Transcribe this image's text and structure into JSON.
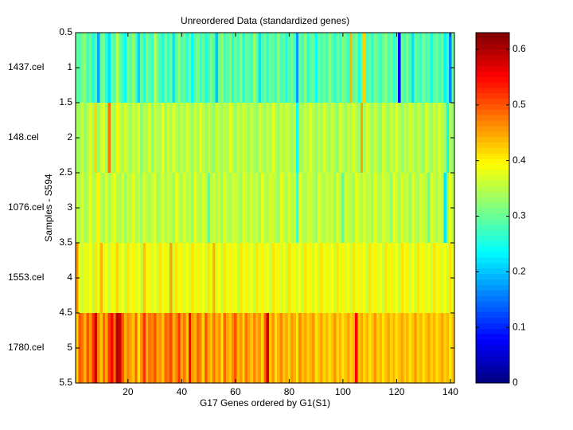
{
  "chart_data": {
    "type": "heatmap",
    "title": "Unreordered Data (standardized genes)",
    "x_label": "G17 Genes ordered by G1(S1)",
    "y_label": "Samples - S594",
    "row_labels": [
      "1437.cel",
      "148.cel",
      "1076.cel",
      "1553.cel",
      "1780.cel"
    ],
    "xlim": [
      0.5,
      141.5
    ],
    "xticks": [
      20,
      40,
      60,
      80,
      100,
      120,
      140
    ],
    "ylim": [
      0.5,
      5.5
    ],
    "yticks": [
      0.5,
      1,
      1.5,
      2,
      2.5,
      3,
      3.5,
      4,
      4.5,
      5,
      5.5
    ],
    "clim": [
      0,
      0.63
    ],
    "cticks": [
      0,
      0.1,
      0.2,
      0.3,
      0.4,
      0.5,
      0.6
    ],
    "colormap": "jet",
    "values": [
      [
        0.3,
        0.28,
        0.31,
        0.33,
        0.27,
        0.3,
        0.25,
        0.29,
        0.18,
        0.3,
        0.32,
        0.26,
        0.22,
        0.3,
        0.28,
        0.35,
        0.3,
        0.27,
        0.24,
        0.31,
        0.29,
        0.33,
        0.28,
        0.21,
        0.3,
        0.26,
        0.32,
        0.29,
        0.27,
        0.36,
        0.3,
        0.28,
        0.25,
        0.31,
        0.27,
        0.3,
        0.22,
        0.29,
        0.33,
        0.28,
        0.3,
        0.26,
        0.31,
        0.24,
        0.29,
        0.32,
        0.27,
        0.3,
        0.25,
        0.28,
        0.31,
        0.29,
        0.2,
        0.3,
        0.34,
        0.27,
        0.29,
        0.31,
        0.26,
        0.3,
        0.28,
        0.32,
        0.25,
        0.3,
        0.29,
        0.27,
        0.33,
        0.3,
        0.22,
        0.28,
        0.31,
        0.26,
        0.3,
        0.29,
        0.27,
        0.32,
        0.28,
        0.3,
        0.25,
        0.29,
        0.31,
        0.27,
        0.17,
        0.3,
        0.28,
        0.32,
        0.26,
        0.29,
        0.3,
        0.24,
        0.31,
        0.28,
        0.3,
        0.27,
        0.33,
        0.29,
        0.26,
        0.3,
        0.28,
        0.32,
        0.3,
        0.27,
        0.44,
        0.29,
        0.31,
        0.25,
        0.3,
        0.42,
        0.28,
        0.3,
        0.26,
        0.31,
        0.29,
        0.27,
        0.3,
        0.33,
        0.28,
        0.3,
        0.26,
        0.29,
        0.08,
        0.3,
        0.27,
        0.31,
        0.28,
        0.22,
        0.3,
        0.29,
        0.26,
        0.32,
        0.28,
        0.3,
        0.24,
        0.29,
        0.31,
        0.27,
        0.3,
        0.23,
        0.28,
        0.16,
        0.3
      ],
      [
        0.34,
        0.33,
        0.36,
        0.32,
        0.35,
        0.37,
        0.34,
        0.42,
        0.33,
        0.36,
        0.38,
        0.34,
        0.48,
        0.35,
        0.33,
        0.4,
        0.36,
        0.34,
        0.37,
        0.35,
        0.33,
        0.36,
        0.34,
        0.38,
        0.32,
        0.35,
        0.34,
        0.37,
        0.33,
        0.36,
        0.35,
        0.34,
        0.39,
        0.33,
        0.36,
        0.34,
        0.38,
        0.35,
        0.33,
        0.36,
        0.34,
        0.37,
        0.35,
        0.33,
        0.36,
        0.34,
        0.38,
        0.35,
        0.33,
        0.36,
        0.34,
        0.32,
        0.37,
        0.35,
        0.33,
        0.36,
        0.34,
        0.38,
        0.35,
        0.33,
        0.36,
        0.34,
        0.37,
        0.35,
        0.33,
        0.36,
        0.34,
        0.32,
        0.37,
        0.35,
        0.33,
        0.36,
        0.34,
        0.38,
        0.35,
        0.33,
        0.36,
        0.34,
        0.37,
        0.35,
        0.33,
        0.36,
        0.24,
        0.35,
        0.33,
        0.36,
        0.34,
        0.38,
        0.35,
        0.33,
        0.36,
        0.34,
        0.37,
        0.35,
        0.33,
        0.36,
        0.34,
        0.32,
        0.37,
        0.35,
        0.33,
        0.36,
        0.34,
        0.38,
        0.35,
        0.33,
        0.45,
        0.34,
        0.37,
        0.35,
        0.33,
        0.36,
        0.34,
        0.32,
        0.37,
        0.35,
        0.33,
        0.36,
        0.34,
        0.38,
        0.35,
        0.33,
        0.36,
        0.34,
        0.37,
        0.35,
        0.33,
        0.36,
        0.34,
        0.32,
        0.37,
        0.35,
        0.33,
        0.36,
        0.34,
        0.38,
        0.35,
        0.33,
        0.24,
        0.34,
        0.33
      ],
      [
        0.36,
        0.34,
        0.37,
        0.33,
        0.35,
        0.38,
        0.34,
        0.36,
        0.4,
        0.35,
        0.33,
        0.37,
        0.34,
        0.36,
        0.39,
        0.35,
        0.34,
        0.37,
        0.33,
        0.36,
        0.35,
        0.38,
        0.34,
        0.36,
        0.33,
        0.37,
        0.35,
        0.34,
        0.36,
        0.38,
        0.33,
        0.35,
        0.37,
        0.34,
        0.36,
        0.35,
        0.33,
        0.38,
        0.36,
        0.34,
        0.37,
        0.35,
        0.36,
        0.33,
        0.38,
        0.35,
        0.34,
        0.37,
        0.36,
        0.29,
        0.35,
        0.37,
        0.34,
        0.36,
        0.33,
        0.38,
        0.35,
        0.34,
        0.37,
        0.36,
        0.35,
        0.33,
        0.38,
        0.36,
        0.34,
        0.37,
        0.35,
        0.36,
        0.33,
        0.38,
        0.35,
        0.34,
        0.37,
        0.36,
        0.35,
        0.33,
        0.38,
        0.36,
        0.34,
        0.37,
        0.35,
        0.36,
        0.28,
        0.38,
        0.35,
        0.34,
        0.37,
        0.36,
        0.35,
        0.33,
        0.38,
        0.36,
        0.34,
        0.37,
        0.35,
        0.36,
        0.33,
        0.38,
        0.35,
        0.29,
        0.37,
        0.36,
        0.35,
        0.33,
        0.38,
        0.36,
        0.34,
        0.37,
        0.35,
        0.36,
        0.33,
        0.38,
        0.35,
        0.34,
        0.37,
        0.36,
        0.35,
        0.33,
        0.38,
        0.36,
        0.34,
        0.37,
        0.35,
        0.36,
        0.33,
        0.38,
        0.35,
        0.34,
        0.37,
        0.36,
        0.35,
        0.3,
        0.38,
        0.36,
        0.34,
        0.37,
        0.35,
        0.22,
        0.33,
        0.38,
        0.35
      ],
      [
        0.46,
        0.38,
        0.36,
        0.4,
        0.37,
        0.39,
        0.35,
        0.41,
        0.38,
        0.44,
        0.37,
        0.39,
        0.36,
        0.4,
        0.38,
        0.42,
        0.37,
        0.39,
        0.36,
        0.41,
        0.38,
        0.4,
        0.37,
        0.39,
        0.36,
        0.43,
        0.38,
        0.4,
        0.37,
        0.39,
        0.36,
        0.41,
        0.38,
        0.4,
        0.37,
        0.45,
        0.36,
        0.41,
        0.38,
        0.4,
        0.37,
        0.39,
        0.36,
        0.41,
        0.38,
        0.4,
        0.37,
        0.39,
        0.36,
        0.41,
        0.38,
        0.44,
        0.37,
        0.39,
        0.36,
        0.41,
        0.38,
        0.4,
        0.37,
        0.39,
        0.36,
        0.41,
        0.38,
        0.4,
        0.37,
        0.39,
        0.36,
        0.41,
        0.38,
        0.4,
        0.37,
        0.39,
        0.36,
        0.41,
        0.38,
        0.4,
        0.37,
        0.39,
        0.36,
        0.41,
        0.38,
        0.4,
        0.37,
        0.39,
        0.36,
        0.41,
        0.38,
        0.4,
        0.37,
        0.39,
        0.36,
        0.41,
        0.38,
        0.4,
        0.37,
        0.39,
        0.36,
        0.41,
        0.38,
        0.4,
        0.37,
        0.39,
        0.36,
        0.41,
        0.38,
        0.4,
        0.37,
        0.39,
        0.36,
        0.41,
        0.38,
        0.4,
        0.37,
        0.39,
        0.36,
        0.41,
        0.38,
        0.4,
        0.37,
        0.39,
        0.36,
        0.41,
        0.38,
        0.4,
        0.37,
        0.39,
        0.36,
        0.41,
        0.38,
        0.4,
        0.37,
        0.39,
        0.36,
        0.41,
        0.38,
        0.4,
        0.37,
        0.39,
        0.36,
        0.41,
        0.38
      ],
      [
        0.42,
        0.5,
        0.48,
        0.44,
        0.5,
        0.46,
        0.52,
        0.58,
        0.47,
        0.43,
        0.49,
        0.45,
        0.52,
        0.55,
        0.48,
        0.6,
        0.58,
        0.5,
        0.44,
        0.47,
        0.45,
        0.43,
        0.49,
        0.41,
        0.46,
        0.52,
        0.44,
        0.48,
        0.47,
        0.5,
        0.45,
        0.46,
        0.43,
        0.49,
        0.48,
        0.51,
        0.44,
        0.47,
        0.52,
        0.45,
        0.48,
        0.43,
        0.55,
        0.46,
        0.44,
        0.49,
        0.47,
        0.42,
        0.5,
        0.45,
        0.43,
        0.48,
        0.44,
        0.46,
        0.41,
        0.49,
        0.45,
        0.43,
        0.47,
        0.5,
        0.44,
        0.46,
        0.42,
        0.48,
        0.45,
        0.43,
        0.47,
        0.44,
        0.46,
        0.42,
        0.49,
        0.58,
        0.43,
        0.46,
        0.41,
        0.44,
        0.47,
        0.43,
        0.45,
        0.42,
        0.46,
        0.44,
        0.41,
        0.47,
        0.43,
        0.45,
        0.42,
        0.44,
        0.46,
        0.41,
        0.43,
        0.45,
        0.42,
        0.44,
        0.41,
        0.43,
        0.46,
        0.42,
        0.44,
        0.41,
        0.43,
        0.45,
        0.42,
        0.44,
        0.55,
        0.43,
        0.45,
        0.42,
        0.44,
        0.41,
        0.43,
        0.46,
        0.42,
        0.44,
        0.41,
        0.43,
        0.45,
        0.42,
        0.44,
        0.41,
        0.43,
        0.45,
        0.42,
        0.44,
        0.41,
        0.43,
        0.46,
        0.42,
        0.44,
        0.41,
        0.43,
        0.45,
        0.42,
        0.44,
        0.41,
        0.43,
        0.45,
        0.42,
        0.44,
        0.41,
        0.43
      ]
    ]
  }
}
